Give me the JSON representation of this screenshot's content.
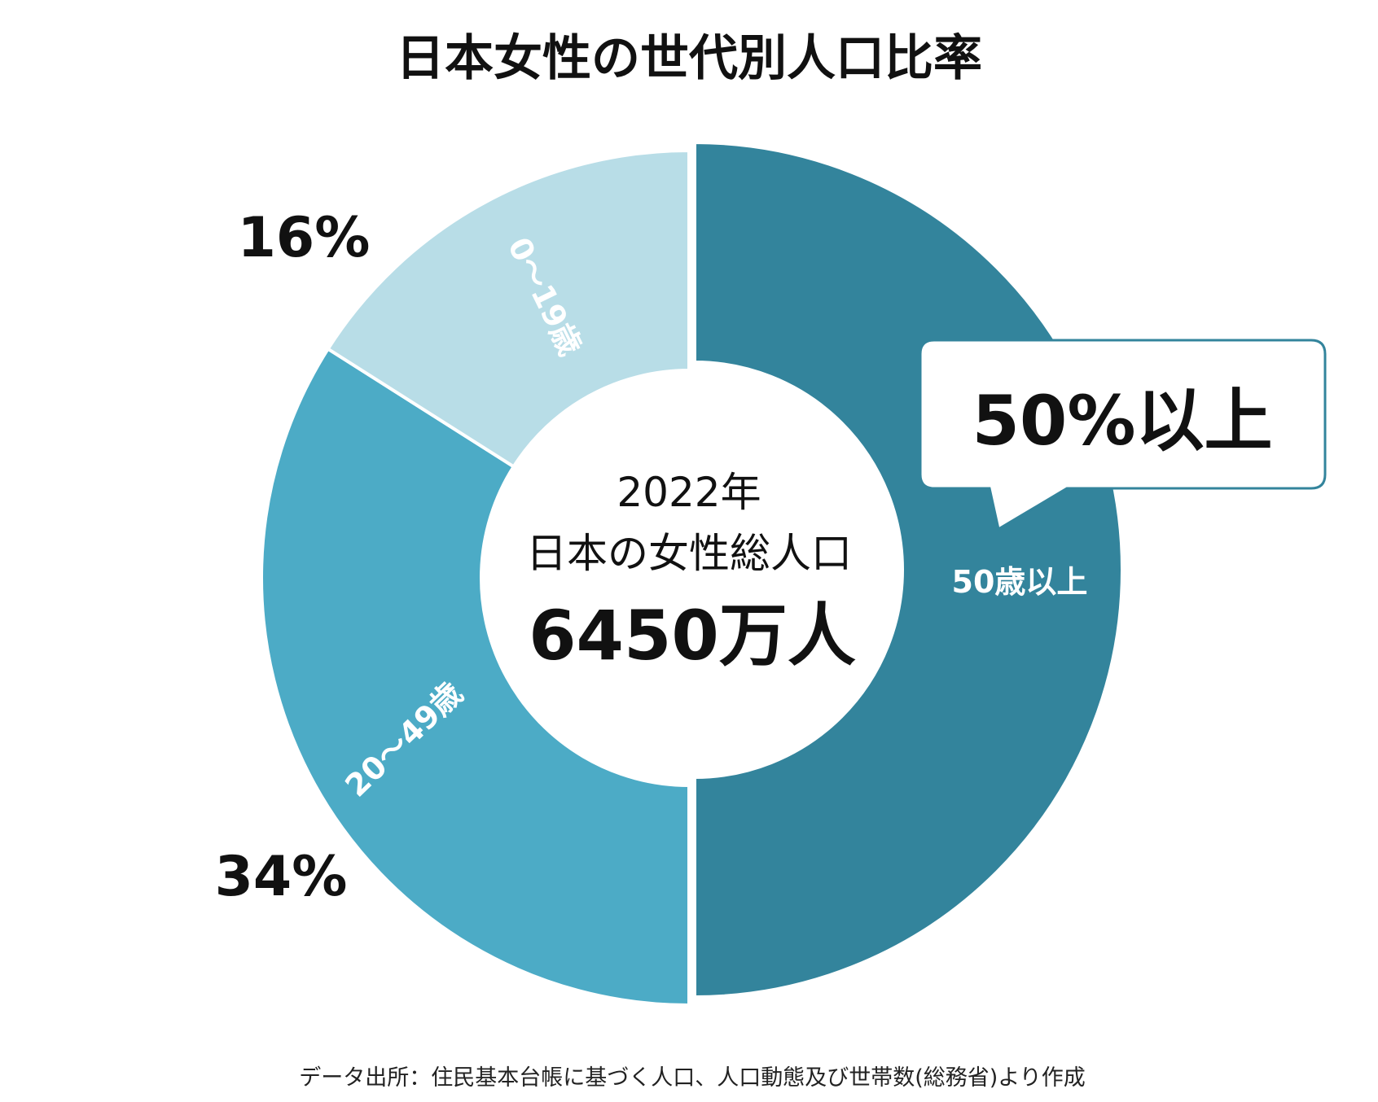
{
  "chart_data": {
    "type": "pie",
    "title": "日本女性の世代別人口比率",
    "center": {
      "year": "2022年",
      "subtitle": "日本の女性総人口",
      "total": "6450万人"
    },
    "slices": [
      {
        "label": "50歳以上",
        "value": 50
      },
      {
        "label": "20〜49歳",
        "value": 34,
        "percent_label": "34%"
      },
      {
        "label": "0〜19歳",
        "value": 16,
        "percent_label": "16%"
      }
    ],
    "callout": "50%以上",
    "colors": [
      "#33849c",
      "#4cabc6",
      "#b8dde7"
    ],
    "source": "データ出所：住民基本台帳に基づく人口、人口動態及び世帯数(総務省)より作成"
  }
}
